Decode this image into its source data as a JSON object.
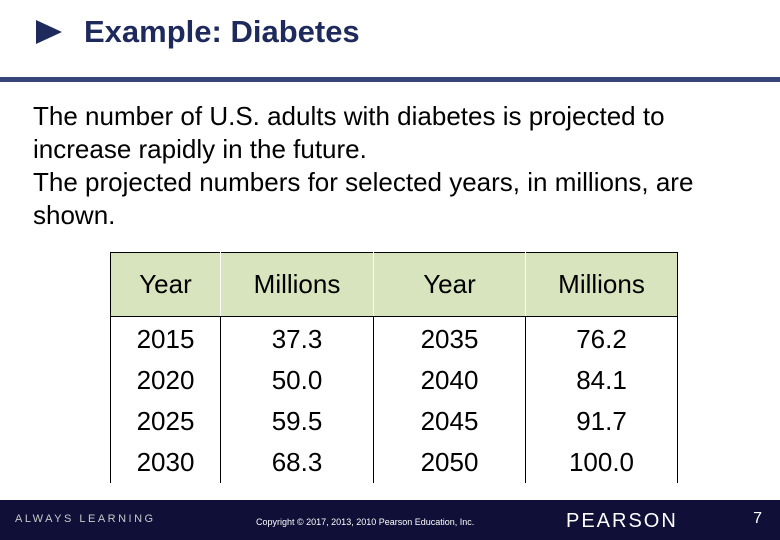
{
  "title": "Example: Diabetes",
  "body_lines": [
    "The number of U.S. adults with diabetes is projected to",
    "increase rapidly in the future.",
    "The projected numbers for selected years, in millions, are",
    "shown."
  ],
  "table": {
    "headers": [
      "Year",
      "Millions",
      "Year",
      "Millions"
    ],
    "col1": [
      "2015",
      "2020",
      "2025",
      "2030"
    ],
    "col2": [
      "37.3",
      "50.0",
      "59.5",
      "68.3"
    ],
    "col3": [
      "2035",
      "2040",
      "2045",
      "2050"
    ],
    "col4": [
      "76.2",
      "84.1",
      "91.7",
      "100.0"
    ]
  },
  "footer": {
    "tagline": "ALWAYS LEARNING",
    "copyright": "Copyright © 2017, 2013, 2010 Pearson Education, Inc.",
    "brand": "PEARSON",
    "page_number": "7"
  },
  "colors": {
    "title": "#1f2a5c",
    "header_fill": "#d7e4bd",
    "footer_bg": "#0f0f37"
  }
}
